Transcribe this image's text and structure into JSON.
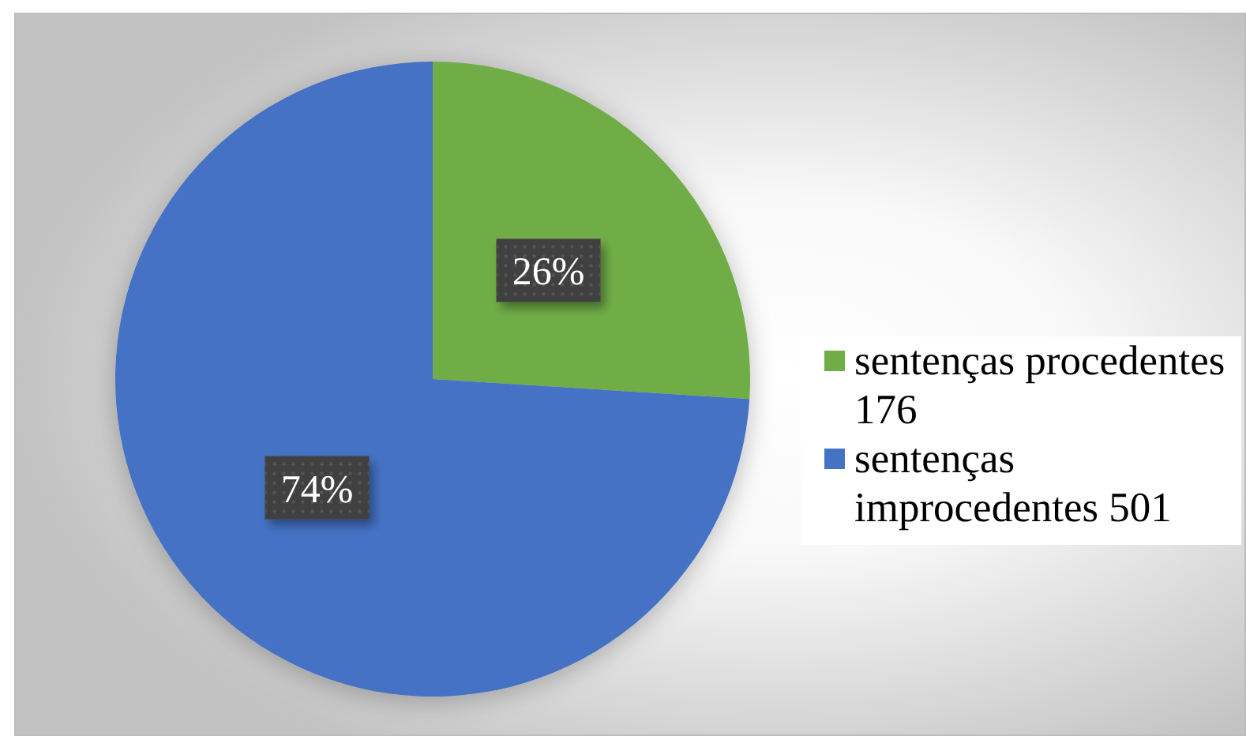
{
  "chart_data": {
    "type": "pie",
    "categories": [
      "sentenças procedentes 176",
      "sentenças improcedentes 501"
    ],
    "values": [
      26,
      74
    ],
    "colors": [
      "#70ad47",
      "#4472c4"
    ],
    "value_labels": [
      "26%",
      "74%"
    ],
    "legend": "right"
  }
}
